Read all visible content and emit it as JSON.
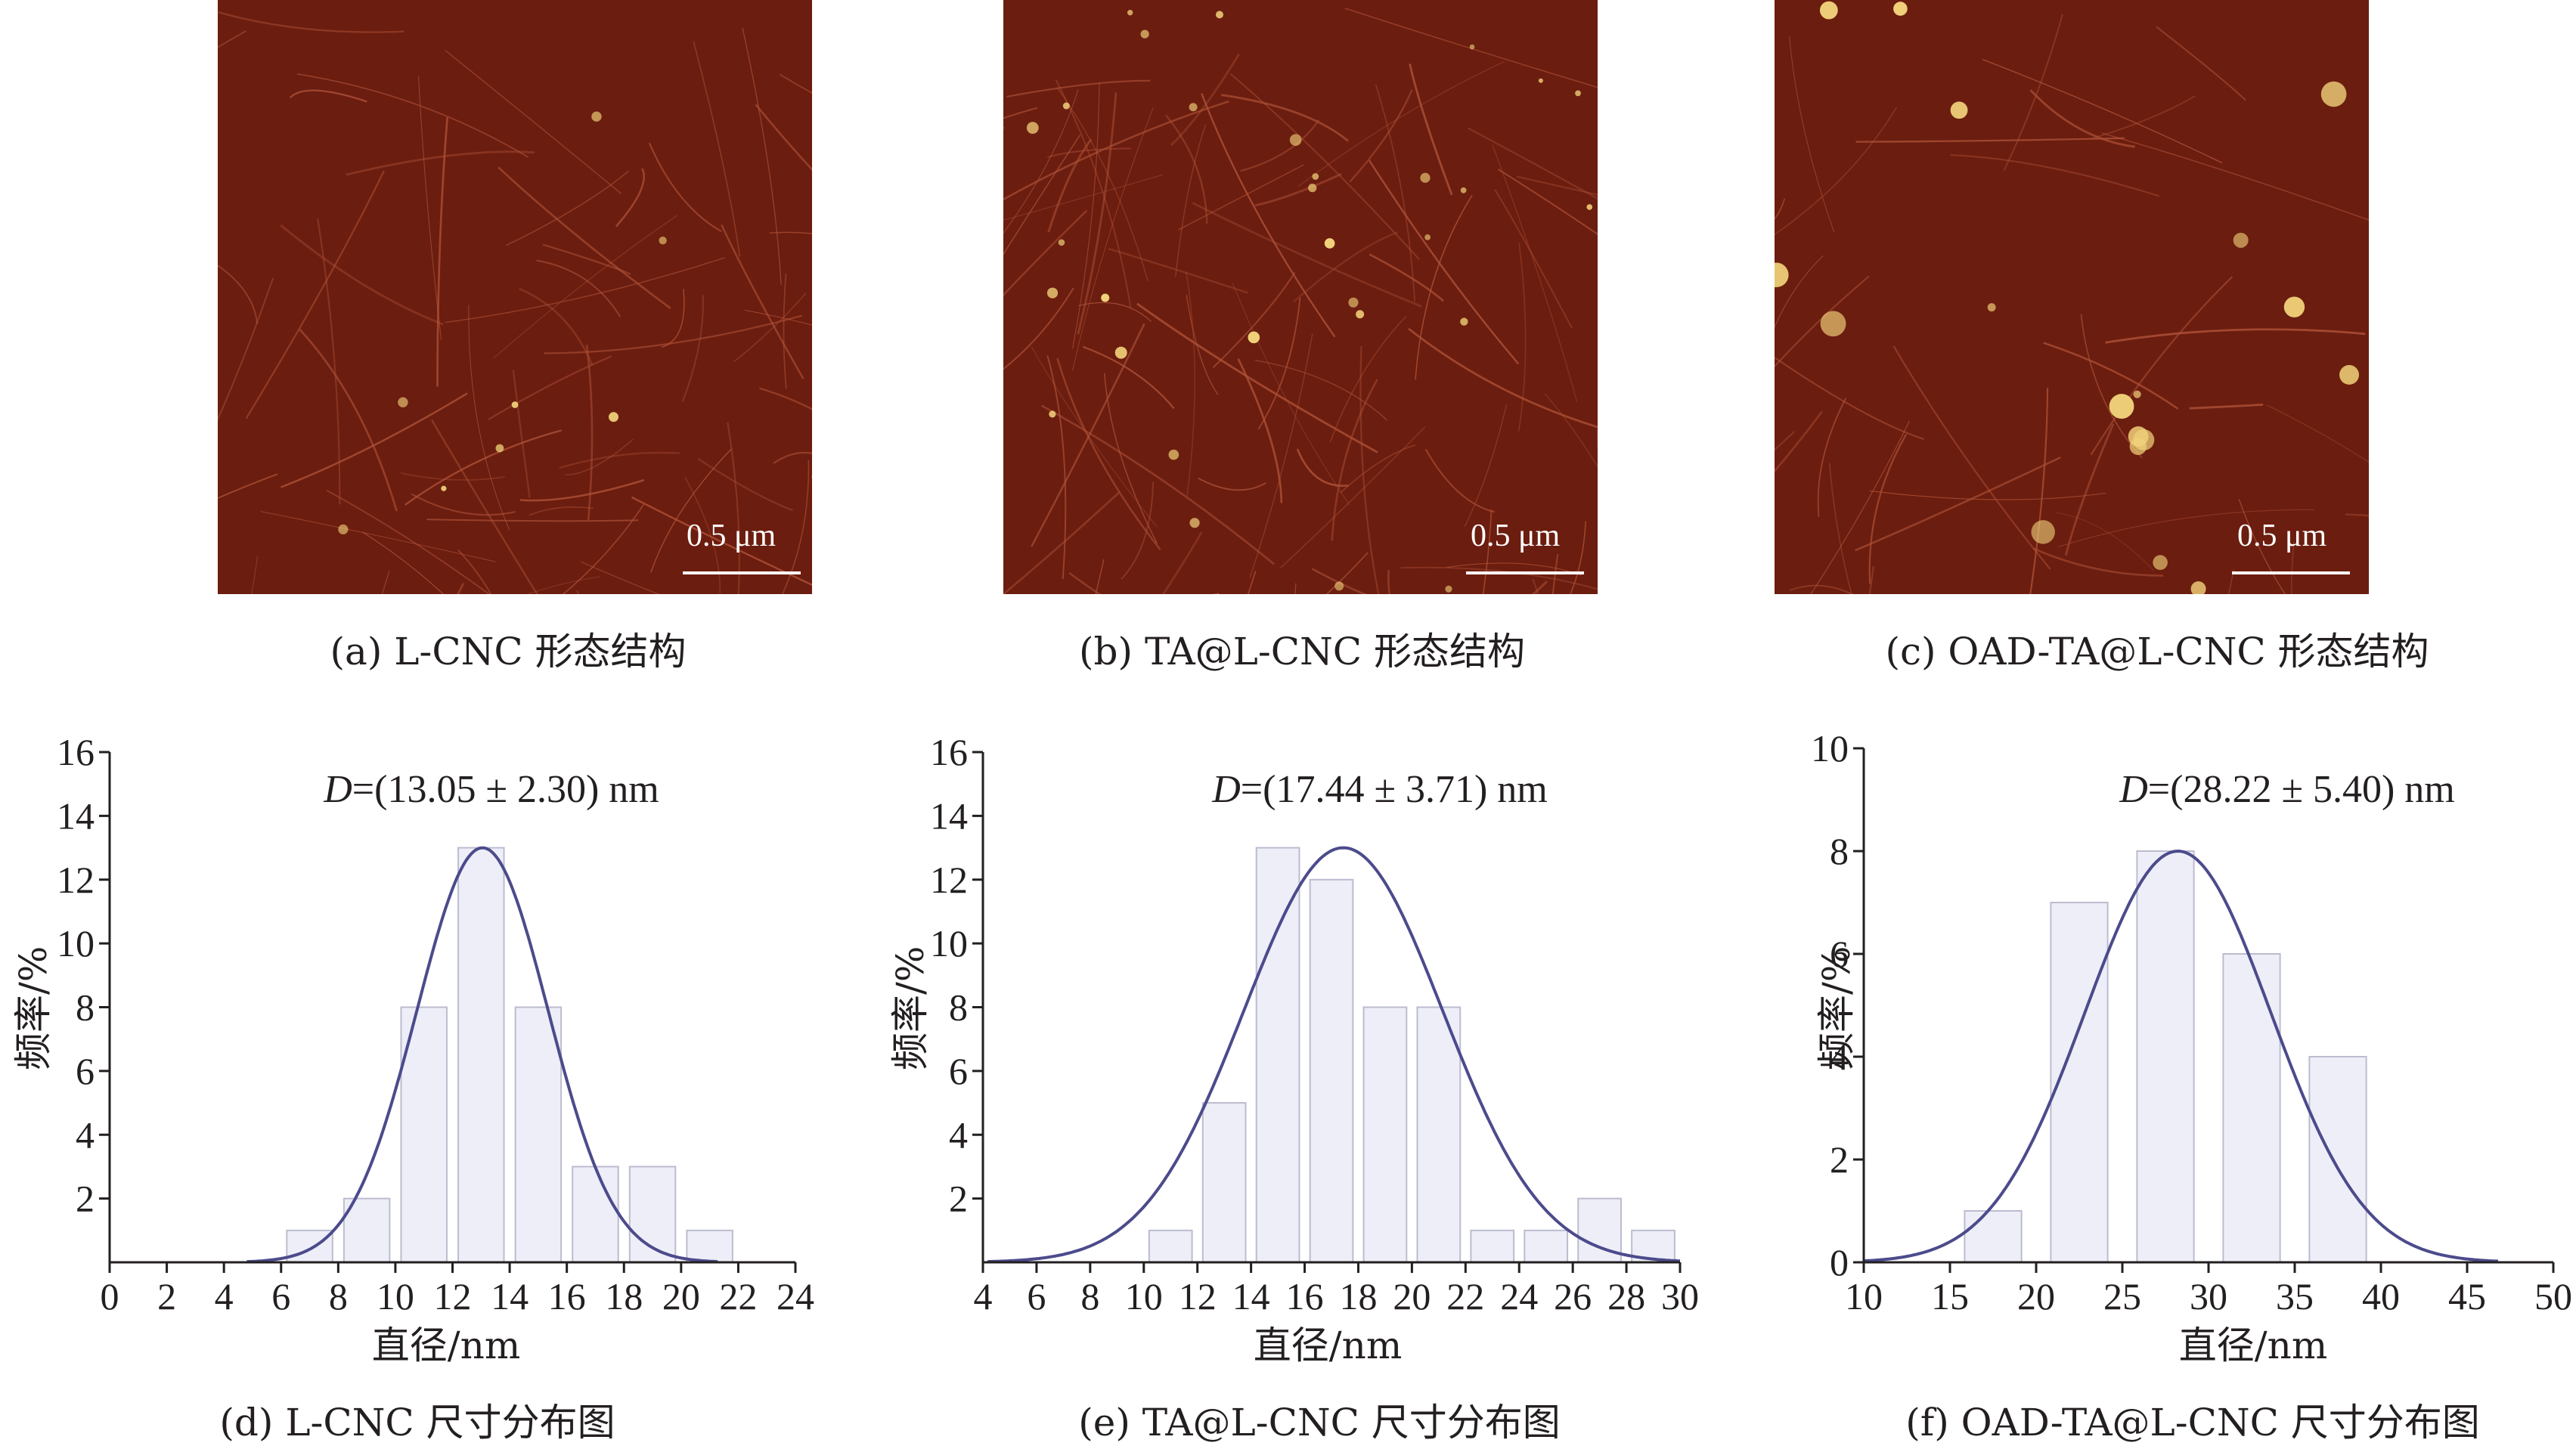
{
  "panels": [
    {
      "caption": "(a) L-CNC 形态结构",
      "scale_bar": "0.5 μm"
    },
    {
      "caption": "(b) TA@L-CNC 形态结构",
      "scale_bar": "0.5 μm"
    },
    {
      "caption": "(c) OAD-TA@L-CNC 形态结构",
      "scale_bar": "0.5 μm"
    }
  ],
  "colors": {
    "afm_background": "#6b1d0f",
    "bar_fill": "#eeeef8",
    "bar_stroke": "#bcbcd0",
    "curve": "#4b4b8c"
  },
  "chart_data": [
    {
      "type": "bar",
      "caption": "(d) L-CNC 尺寸分布图",
      "annotation_var": "D",
      "annotation_value": "=(13.05 ± 2.30) nm",
      "xlabel": "直径/nm",
      "ylabel": "频率/%",
      "xlim": [
        0,
        24
      ],
      "ylim": [
        0,
        16
      ],
      "xticks": [
        "0",
        "2",
        "4",
        "6",
        "8",
        "10",
        "12",
        "14",
        "16",
        "18",
        "20",
        "22",
        "24"
      ],
      "yticks": [
        "2",
        "4",
        "6",
        "8",
        "10",
        "12",
        "14",
        "16"
      ],
      "bin_width": 1.6,
      "x": [
        7.0,
        9.0,
        11.0,
        13.0,
        15.0,
        17.0,
        19.0,
        21.0
      ],
      "values": [
        1,
        2,
        8,
        13,
        8,
        3,
        3,
        1
      ],
      "fit": {
        "mean": 13.05,
        "sd": 2.3,
        "peak": 13
      }
    },
    {
      "type": "bar",
      "caption": "(e) TA@L-CNC 尺寸分布图",
      "annotation_var": "D",
      "annotation_value": "=(17.44 ± 3.71) nm",
      "xlabel": "直径/nm",
      "ylabel": "频率/%",
      "xlim": [
        4,
        30
      ],
      "ylim": [
        0,
        16
      ],
      "xticks": [
        "4",
        "6",
        "8",
        "10",
        "12",
        "14",
        "16",
        "18",
        "20",
        "22",
        "24",
        "26",
        "28",
        "30"
      ],
      "yticks": [
        "2",
        "4",
        "6",
        "8",
        "10",
        "12",
        "14",
        "16"
      ],
      "bin_width": 1.6,
      "x": [
        11.0,
        13.0,
        15.0,
        17.0,
        19.0,
        21.0,
        23.0,
        25.0,
        27.0,
        29.0
      ],
      "values": [
        1,
        5,
        13,
        12,
        8,
        8,
        1,
        1,
        2,
        1
      ],
      "fit": {
        "mean": 17.44,
        "sd": 3.71,
        "peak": 13
      }
    },
    {
      "type": "bar",
      "caption": "(f) OAD-TA@L-CNC 尺寸分布图",
      "annotation_var": "D",
      "annotation_value": "=(28.22 ± 5.40) nm",
      "xlabel": "直径/nm",
      "ylabel": "频率/%",
      "xlim": [
        10,
        50
      ],
      "ylim": [
        0,
        10
      ],
      "xticks": [
        "10",
        "15",
        "20",
        "25",
        "30",
        "35",
        "40",
        "45",
        "50"
      ],
      "yticks": [
        "0",
        "2",
        "4",
        "6",
        "8",
        "10"
      ],
      "bin_width": 3.3,
      "x": [
        17.5,
        22.5,
        27.5,
        32.5,
        37.5
      ],
      "values": [
        1,
        7,
        8,
        6,
        4
      ],
      "fit": {
        "mean": 28.22,
        "sd": 5.4,
        "peak": 8
      }
    }
  ]
}
